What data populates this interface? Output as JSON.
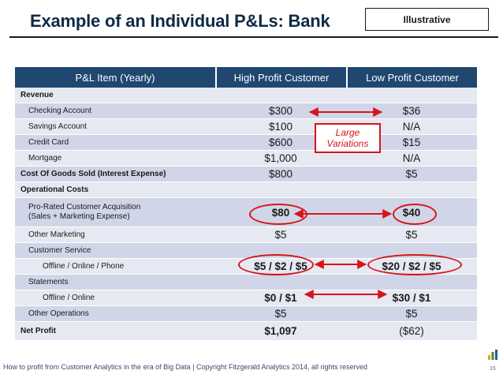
{
  "title": "Example of an Individual P&Ls: Bank",
  "tag": "Illustrative",
  "table": {
    "headers": [
      "P&L Item (Yearly)",
      "High Profit Customer",
      "Low Profit Customer"
    ],
    "rows": [
      {
        "label": "Revenue",
        "indent": 0,
        "bold": true,
        "high": "",
        "low": "",
        "highlight": false
      },
      {
        "label": "Checking Account",
        "indent": 1,
        "bold": false,
        "high": "$300",
        "low": "$36",
        "highlight": false
      },
      {
        "label": "Savings Account",
        "indent": 1,
        "bold": false,
        "high": "$100",
        "low": "N/A",
        "highlight": false
      },
      {
        "label": "Credit Card",
        "indent": 1,
        "bold": false,
        "high": "$600",
        "low": "$15",
        "highlight": false
      },
      {
        "label": "Mortgage",
        "indent": 1,
        "bold": false,
        "high": "$1,000",
        "low": "N/A",
        "highlight": false
      },
      {
        "label": "Cost Of Goods Sold (Interest Expense)",
        "indent": 0,
        "bold": true,
        "high": "$800",
        "low": "$5",
        "highlight": false
      },
      {
        "label": "Operational Costs",
        "indent": 0,
        "bold": true,
        "high": "",
        "low": "",
        "highlight": false
      },
      {
        "label": "Pro-Rated Customer Acquisition\n(Sales + Marketing Expense)",
        "indent": 1,
        "bold": false,
        "high": "$80",
        "low": "$40",
        "highlight": true,
        "tall": true
      },
      {
        "label": "Other Marketing",
        "indent": 1,
        "bold": false,
        "high": "$5",
        "low": "$5",
        "highlight": false
      },
      {
        "label": "Customer Service",
        "indent": 1,
        "bold": false,
        "high": "",
        "low": "",
        "highlight": false
      },
      {
        "label": "Offline / Online / Phone",
        "indent": 2,
        "bold": false,
        "high": "$5 / $2 / $5",
        "low": "$20 / $2 / $5",
        "highlight": true
      },
      {
        "label": "Statements",
        "indent": 1,
        "bold": false,
        "high": "",
        "low": "",
        "highlight": false
      },
      {
        "label": "Offline / Online",
        "indent": 2,
        "bold": false,
        "high": "$0 / $1",
        "low": "$30 / $1",
        "highlight": true
      },
      {
        "label": "Other Operations",
        "indent": 1,
        "bold": false,
        "high": "$5",
        "low": "$5",
        "highlight": false
      },
      {
        "label": "Net Profit",
        "indent": 0,
        "bold": true,
        "high": "$1,097",
        "low": "($62)",
        "highlight": false,
        "net": true
      }
    ]
  },
  "callout": "Large Variations",
  "footer": "How to profit from Customer Analytics in the era of Big Data | Copyright Fitzgerald Analytics 2014, all rights reserved",
  "page_number": "15",
  "colors": {
    "header": "#1f4770",
    "accent": "#d8141b",
    "title": "#0f2a44"
  },
  "icons": [
    "bar-chart-logo-icon"
  ]
}
